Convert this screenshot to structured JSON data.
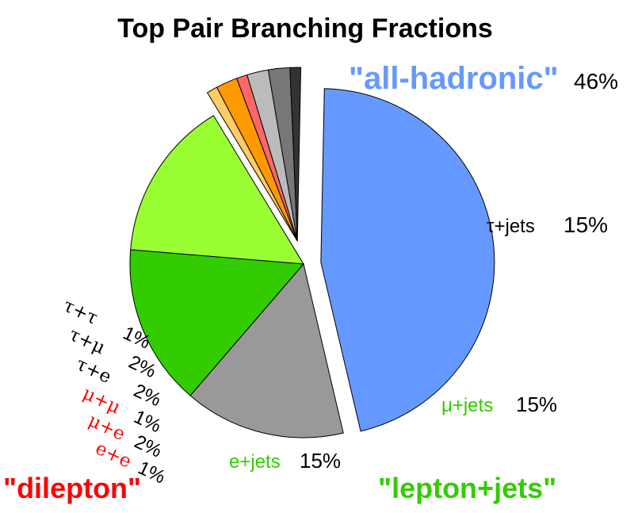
{
  "chart_data": {
    "type": "pie",
    "title": "Top Pair Branching Fractions",
    "slices": [
      {
        "label": "\"all-hadronic\"",
        "value": 46,
        "value_label": "46%",
        "color": "#6699ff",
        "group": "all-hadronic"
      },
      {
        "label": "τ+jets",
        "value": 15,
        "value_label": "15%",
        "color": "#999999",
        "group": "lepton+jets"
      },
      {
        "label": "μ+jets",
        "value": 15,
        "value_label": "15%",
        "color": "#33cc00",
        "group": "lepton+jets"
      },
      {
        "label": "e+jets",
        "value": 15,
        "value_label": "15%",
        "color": "#99ff33",
        "group": "lepton+jets"
      },
      {
        "label": "e+e",
        "value": 1,
        "value_label": "1%",
        "color": "#ffcc66",
        "group": "dilepton"
      },
      {
        "label": "μ+e",
        "value": 2,
        "value_label": "2%",
        "color": "#ff9900",
        "group": "dilepton"
      },
      {
        "label": "μ+μ",
        "value": 1,
        "value_label": "1%",
        "color": "#ff6666",
        "group": "dilepton"
      },
      {
        "label": "τ+e",
        "value": 2,
        "value_label": "2%",
        "color": "#bbbbbb",
        "group": "dilepton"
      },
      {
        "label": "τ+μ",
        "value": 2,
        "value_label": "2%",
        "color": "#777777",
        "group": "dilepton"
      },
      {
        "label": "τ+τ",
        "value": 1,
        "value_label": "1%",
        "color": "#333333",
        "group": "dilepton"
      }
    ],
    "groups": [
      {
        "name": "\"all-hadronic\"",
        "color": "#6699ff"
      },
      {
        "name": "\"lepton+jets\"",
        "color": "#33cc00"
      },
      {
        "name": "\"dilepton\"",
        "color": "#ff0000"
      }
    ]
  }
}
